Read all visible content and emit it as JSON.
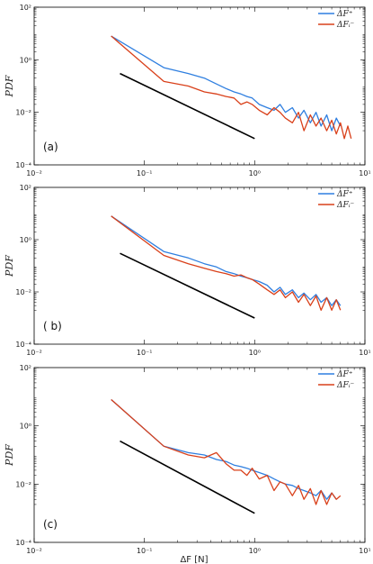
{
  "figure": {
    "xlabel": "ΔF [N]",
    "ylabel": "PDF"
  },
  "chart_data": [
    {
      "type": "line",
      "tag": "(a)",
      "xscale": "log",
      "yscale": "log",
      "xlim": [
        0.01,
        10
      ],
      "ylim": [
        0.0001,
        100
      ],
      "xticks": [
        "10⁻²",
        "10⁻¹",
        "10⁰",
        "10¹"
      ],
      "yticks": [
        "10²",
        "10⁰",
        "10⁻²",
        "10⁻⁴"
      ],
      "ylabel": "PDF",
      "xlabel": "",
      "legend": {
        "position": "top-right",
        "entries": [
          "ΔF⁺",
          "ΔFᵢ⁻"
        ]
      },
      "series": [
        {
          "name": "ΔF⁺",
          "color": "#2f7fe0",
          "x": [
            0.05,
            0.15,
            0.25,
            0.35,
            0.45,
            0.55,
            0.65,
            0.75,
            0.85,
            0.95,
            1.1,
            1.3,
            1.5,
            1.7,
            1.9,
            2.2,
            2.5,
            2.8,
            3.2,
            3.6,
            4.0,
            4.5,
            5.0,
            5.5,
            6.0
          ],
          "y": [
            8,
            0.5,
            0.3,
            0.2,
            0.12,
            0.08,
            0.06,
            0.05,
            0.04,
            0.035,
            0.02,
            0.015,
            0.012,
            0.02,
            0.01,
            0.015,
            0.006,
            0.012,
            0.004,
            0.01,
            0.003,
            0.008,
            0.002,
            0.006,
            0.003
          ]
        },
        {
          "name": "ΔFᵢ⁻",
          "color": "#d9401a",
          "x": [
            0.05,
            0.15,
            0.25,
            0.35,
            0.45,
            0.55,
            0.65,
            0.75,
            0.85,
            0.95,
            1.1,
            1.3,
            1.5,
            1.7,
            1.9,
            2.2,
            2.5,
            2.8,
            3.2,
            3.6,
            4.0,
            4.5,
            5.0,
            5.5,
            6.0,
            6.5,
            7.0,
            7.5
          ],
          "y": [
            8,
            0.15,
            0.1,
            0.06,
            0.05,
            0.04,
            0.035,
            0.02,
            0.025,
            0.02,
            0.012,
            0.008,
            0.015,
            0.01,
            0.006,
            0.004,
            0.01,
            0.002,
            0.008,
            0.003,
            0.006,
            0.002,
            0.005,
            0.0015,
            0.004,
            0.001,
            0.003,
            0.001
          ]
        },
        {
          "name": "",
          "color": "#000000",
          "x": [
            0.06,
            1.0
          ],
          "y": [
            0.3,
            0.001
          ]
        }
      ]
    },
    {
      "type": "line",
      "tag": "( b)",
      "xscale": "log",
      "yscale": "log",
      "xlim": [
        0.01,
        10
      ],
      "ylim": [
        0.0001,
        100
      ],
      "xticks": [
        "10⁻²",
        "10⁻¹",
        "10⁰",
        "10¹"
      ],
      "yticks": [
        "10²",
        "10⁰",
        "10⁻²",
        "10⁻⁴"
      ],
      "ylabel": "PDF",
      "xlabel": "",
      "legend": {
        "position": "top-right",
        "entries": [
          "ΔF⁺",
          "ΔFᵢ⁻"
        ]
      },
      "series": [
        {
          "name": "ΔF⁺",
          "color": "#2f7fe0",
          "x": [
            0.05,
            0.15,
            0.25,
            0.35,
            0.45,
            0.55,
            0.65,
            0.75,
            0.85,
            0.95,
            1.1,
            1.3,
            1.5,
            1.7,
            1.9,
            2.2,
            2.5,
            2.8,
            3.2,
            3.6,
            4.0,
            4.5,
            5.0,
            5.5,
            6.0
          ],
          "y": [
            8,
            0.35,
            0.2,
            0.12,
            0.09,
            0.06,
            0.05,
            0.04,
            0.035,
            0.03,
            0.025,
            0.018,
            0.01,
            0.015,
            0.008,
            0.012,
            0.006,
            0.009,
            0.005,
            0.008,
            0.004,
            0.006,
            0.003,
            0.005,
            0.003
          ]
        },
        {
          "name": "ΔFᵢ⁻",
          "color": "#d9401a",
          "x": [
            0.05,
            0.15,
            0.25,
            0.35,
            0.45,
            0.55,
            0.65,
            0.75,
            0.85,
            0.95,
            1.1,
            1.3,
            1.5,
            1.7,
            1.9,
            2.2,
            2.5,
            2.8,
            3.2,
            3.6,
            4.0,
            4.5,
            5.0,
            5.5,
            6.0
          ],
          "y": [
            8,
            0.25,
            0.12,
            0.08,
            0.06,
            0.05,
            0.04,
            0.045,
            0.035,
            0.03,
            0.02,
            0.012,
            0.008,
            0.012,
            0.006,
            0.01,
            0.004,
            0.008,
            0.003,
            0.007,
            0.002,
            0.006,
            0.002,
            0.005,
            0.002
          ]
        },
        {
          "name": "",
          "color": "#000000",
          "x": [
            0.06,
            1.0
          ],
          "y": [
            0.3,
            0.001
          ]
        }
      ]
    },
    {
      "type": "line",
      "tag": "(c)",
      "xscale": "log",
      "yscale": "log",
      "xlim": [
        0.01,
        10
      ],
      "ylim": [
        0.0001,
        100
      ],
      "xticks": [
        "10⁻²",
        "10⁻¹",
        "10⁰",
        "10¹"
      ],
      "yticks": [
        "10²",
        "10⁰",
        "10⁻²",
        "10⁻⁴"
      ],
      "ylabel": "PDF",
      "xlabel": "ΔF [N]",
      "legend": {
        "position": "top-right",
        "entries": [
          "ΔF⁺",
          "ΔFᵢ⁻"
        ]
      },
      "series": [
        {
          "name": "ΔF⁺",
          "color": "#2f7fe0",
          "x": [
            0.05,
            0.15,
            0.25,
            0.35,
            0.45,
            0.55,
            0.65,
            0.75,
            0.85,
            0.95,
            1.1,
            1.3,
            1.5,
            1.7,
            1.9,
            2.2,
            2.5,
            2.8,
            3.2,
            3.6,
            4.0,
            4.5,
            5.0,
            5.5
          ],
          "y": [
            8,
            0.2,
            0.12,
            0.1,
            0.07,
            0.06,
            0.045,
            0.04,
            0.035,
            0.03,
            0.025,
            0.02,
            0.015,
            0.012,
            0.01,
            0.009,
            0.007,
            0.006,
            0.005,
            0.004,
            0.006,
            0.003,
            0.005,
            0.003
          ]
        },
        {
          "name": "ΔFᵢ⁻",
          "color": "#d9401a",
          "x": [
            0.05,
            0.15,
            0.25,
            0.35,
            0.45,
            0.55,
            0.65,
            0.75,
            0.85,
            0.95,
            1.1,
            1.3,
            1.5,
            1.7,
            1.9,
            2.2,
            2.5,
            2.8,
            3.2,
            3.6,
            4.0,
            4.5,
            5.0,
            5.5,
            6.0
          ],
          "y": [
            8,
            0.2,
            0.1,
            0.08,
            0.12,
            0.05,
            0.03,
            0.03,
            0.02,
            0.035,
            0.015,
            0.02,
            0.006,
            0.012,
            0.01,
            0.004,
            0.009,
            0.003,
            0.007,
            0.002,
            0.006,
            0.002,
            0.005,
            0.003,
            0.004
          ]
        },
        {
          "name": "",
          "color": "#000000",
          "x": [
            0.06,
            1.0
          ],
          "y": [
            0.3,
            0.001
          ]
        }
      ]
    }
  ]
}
